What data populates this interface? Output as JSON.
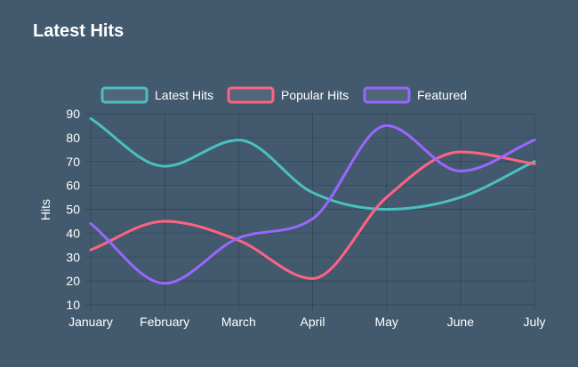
{
  "card": {
    "title": "Latest Hits"
  },
  "chart_data": {
    "type": "line",
    "categories": [
      "January",
      "February",
      "March",
      "April",
      "May",
      "June",
      "July"
    ],
    "series": [
      {
        "name": "Latest Hits",
        "color": "#4bc0c0",
        "values": [
          88,
          68,
          79,
          57,
          50,
          55,
          70
        ]
      },
      {
        "name": "Popular Hits",
        "color": "#ff6384",
        "values": [
          33,
          45,
          37,
          21,
          55,
          74,
          69
        ]
      },
      {
        "name": "Featured",
        "color": "#9966ff",
        "values": [
          44,
          19,
          38,
          46,
          85,
          66,
          79
        ]
      }
    ],
    "xlabel": "",
    "ylabel": "Hits",
    "ylim": [
      10,
      90
    ],
    "yticks": [
      10,
      20,
      30,
      40,
      50,
      60,
      70,
      80,
      90
    ],
    "grid": true,
    "legend_position": "top",
    "smooth": true
  }
}
